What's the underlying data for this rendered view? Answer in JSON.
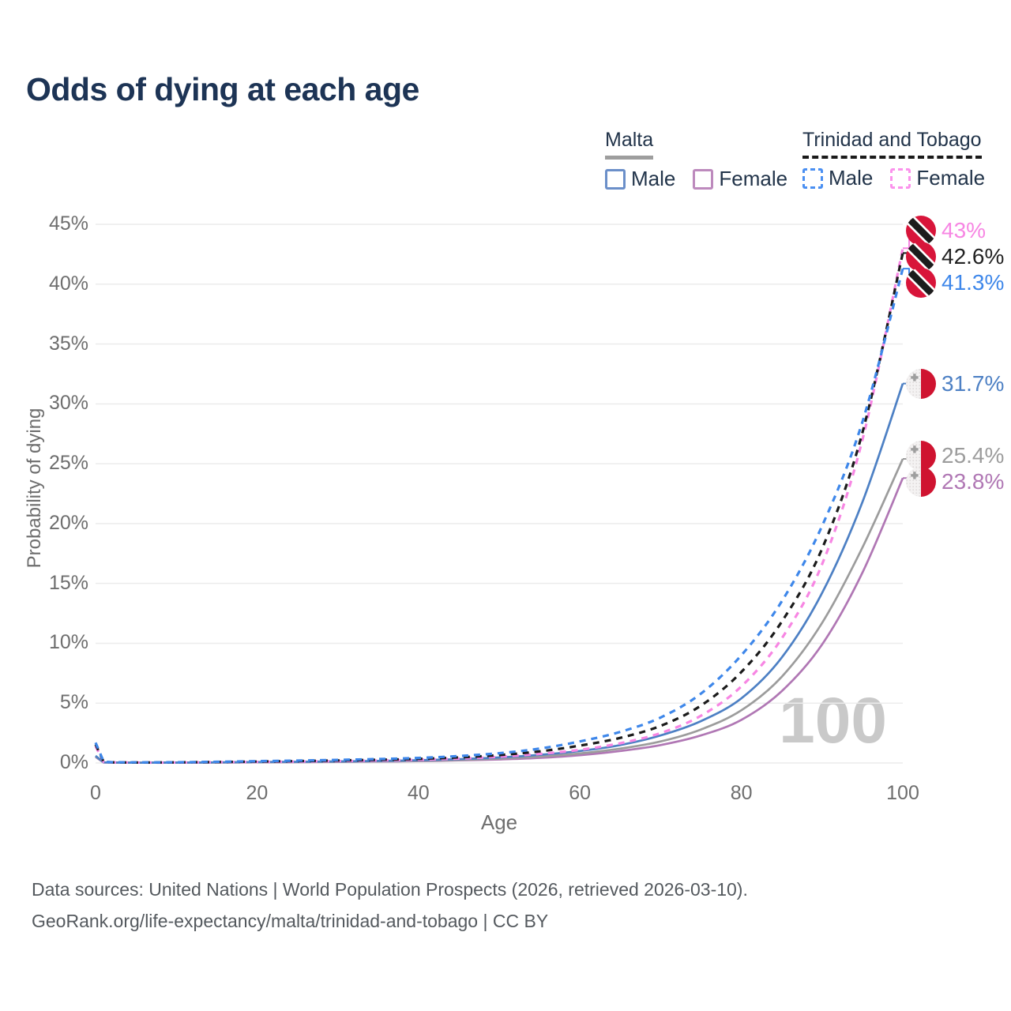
{
  "title": "Odds of dying at each age",
  "watermark_age": "100",
  "legend": {
    "malta": {
      "country": "Malta",
      "line_style": "solid",
      "line_color": "#9e9e9e",
      "male_label": "Male",
      "male_color": "#6b8fc9",
      "female_label": "Female",
      "female_color": "#bd8abd"
    },
    "trinidad": {
      "country": "Trinidad and Tobago",
      "line_style": "dashed",
      "line_color": "#1a1a1a",
      "male_label": "Male",
      "male_color": "#4a8ff2",
      "female_label": "Female",
      "female_color": "#fb92ec"
    }
  },
  "footer": {
    "line1": "Data sources: United Nations | World Population Prospects (2026, retrieved 2026-03-10).",
    "line2": "GeoRank.org/life-expectancy/malta/trinidad-and-tobago | CC BY"
  },
  "chart_data": {
    "type": "line",
    "title": "Odds of dying at each age",
    "xlabel": "Age",
    "ylabel": "Probability of dying",
    "xlim": [
      0,
      100
    ],
    "ylim": [
      0,
      45
    ],
    "xticks": [
      0,
      20,
      40,
      60,
      80,
      100
    ],
    "yticks": [
      0,
      5,
      10,
      15,
      20,
      25,
      30,
      35,
      40,
      45
    ],
    "ytick_suffix": "%",
    "grid": "horizontal",
    "legend_position": "top-right",
    "ages": [
      0,
      1,
      5,
      10,
      15,
      20,
      25,
      30,
      35,
      40,
      45,
      50,
      55,
      60,
      65,
      70,
      75,
      80,
      85,
      90,
      95,
      100
    ],
    "series": [
      {
        "id": "trinidad-tobago-female",
        "name": "Trinidad and Tobago — Female",
        "flag": "trinidad-tobago",
        "color": "#f786e3",
        "dash": true,
        "end_label": "43%",
        "end_value": 43.0,
        "values": [
          1.4,
          0.09,
          0.04,
          0.04,
          0.07,
          0.09,
          0.12,
          0.16,
          0.21,
          0.27,
          0.37,
          0.52,
          0.76,
          1.1,
          1.65,
          2.5,
          3.95,
          6.4,
          10.4,
          16.6,
          27.0,
          43.0
        ]
      },
      {
        "id": "trinidad-tobago-total",
        "name": "Trinidad and Tobago — Both sexes",
        "flag": "trinidad-tobago",
        "color": "#1b1b1b",
        "dash": true,
        "end_label": "42.6%",
        "end_value": 42.6,
        "values": [
          1.55,
          0.1,
          0.04,
          0.05,
          0.08,
          0.12,
          0.16,
          0.21,
          0.27,
          0.34,
          0.47,
          0.66,
          0.97,
          1.45,
          2.1,
          3.1,
          4.8,
          7.6,
          11.8,
          17.9,
          27.6,
          42.6
        ]
      },
      {
        "id": "trinidad-tobago-male",
        "name": "Trinidad and Tobago — Male",
        "flag": "trinidad-tobago",
        "color": "#3e87ea",
        "dash": true,
        "end_label": "41.3%",
        "end_value": 41.3,
        "values": [
          1.7,
          0.12,
          0.05,
          0.06,
          0.1,
          0.15,
          0.2,
          0.26,
          0.33,
          0.42,
          0.58,
          0.82,
          1.2,
          1.8,
          2.6,
          3.8,
          5.8,
          9.0,
          13.5,
          19.8,
          28.5,
          41.3
        ]
      },
      {
        "id": "malta-male",
        "name": "Malta — Male",
        "flag": "malta",
        "color": "#4d80c4",
        "dash": false,
        "end_label": "31.7%",
        "end_value": 31.7,
        "values": [
          0.6,
          0.05,
          0.02,
          0.03,
          0.05,
          0.08,
          0.1,
          0.13,
          0.17,
          0.23,
          0.32,
          0.46,
          0.68,
          1.0,
          1.5,
          2.3,
          3.5,
          5.4,
          8.8,
          14.2,
          21.8,
          31.7
        ]
      },
      {
        "id": "malta-total",
        "name": "Malta — Both sexes",
        "flag": "malta",
        "color": "#9c9c9c",
        "dash": false,
        "end_label": "25.4%",
        "end_value": 25.4,
        "values": [
          0.55,
          0.05,
          0.02,
          0.03,
          0.04,
          0.06,
          0.08,
          0.1,
          0.14,
          0.18,
          0.26,
          0.37,
          0.54,
          0.8,
          1.2,
          1.8,
          2.8,
          4.4,
          7.2,
          11.7,
          18.0,
          25.4
        ]
      },
      {
        "id": "malta-female",
        "name": "Malta — Female",
        "flag": "malta",
        "color": "#b077b4",
        "dash": false,
        "end_label": "23.8%",
        "end_value": 23.8,
        "values": [
          0.5,
          0.04,
          0.02,
          0.02,
          0.04,
          0.05,
          0.07,
          0.09,
          0.12,
          0.15,
          0.22,
          0.3,
          0.43,
          0.65,
          1.0,
          1.5,
          2.3,
          3.6,
          6.0,
          9.9,
          15.9,
          23.8
        ]
      }
    ]
  }
}
